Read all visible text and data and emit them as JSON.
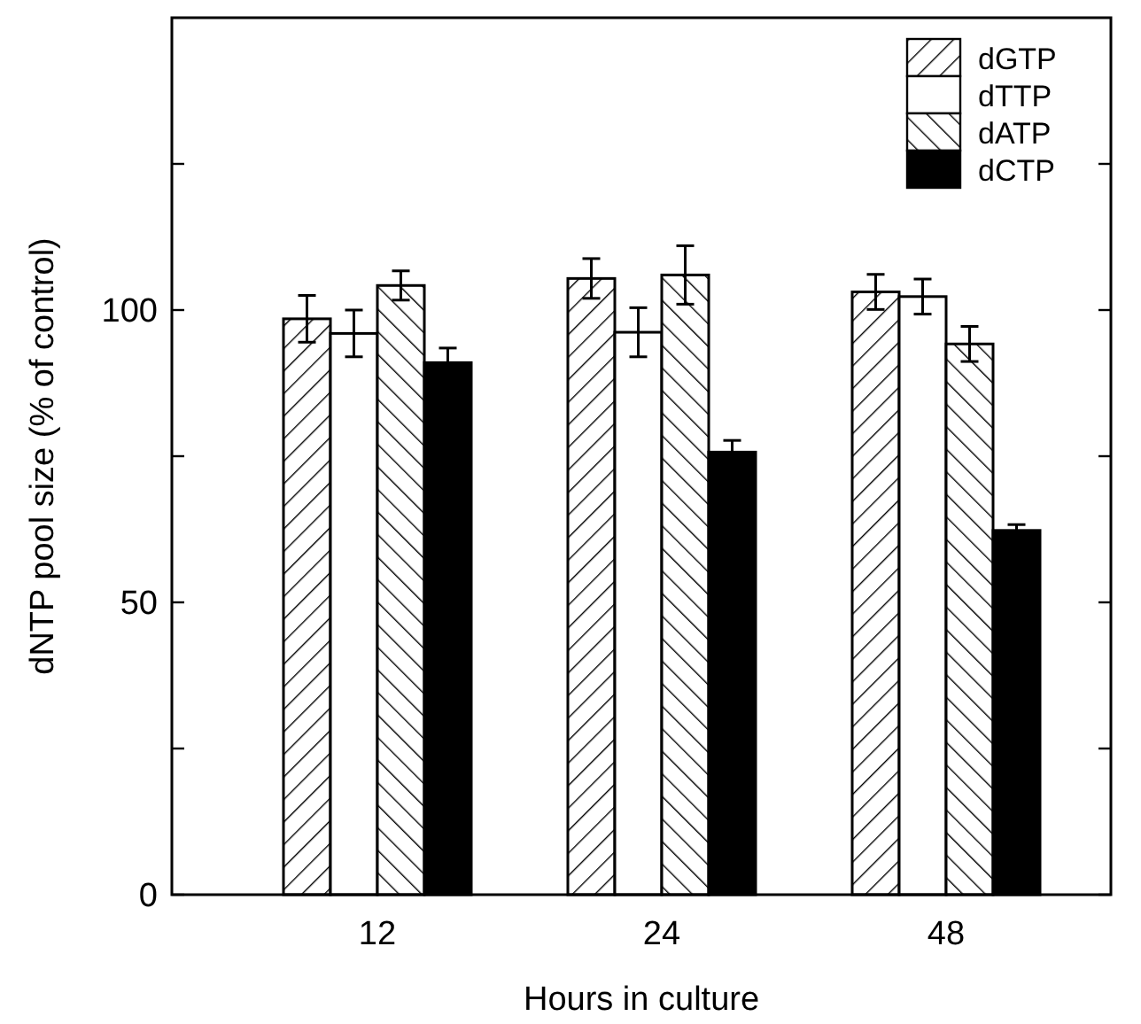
{
  "chart_data": {
    "type": "bar",
    "xlabel": "Hours in culture",
    "ylabel": "dNTP pool size (% of control)",
    "categories": [
      "12",
      "24",
      "48"
    ],
    "series": [
      {
        "name": "dGTP",
        "color": "#000000",
        "values": [
          98.5,
          105.4,
          103.1
        ],
        "errors": [
          4,
          3.4,
          3
        ]
      },
      {
        "name": "dTTP",
        "color": "#ffffff",
        "values": [
          96,
          96.2,
          102.3
        ],
        "errors": [
          4,
          4.2,
          3
        ]
      },
      {
        "name": "dATP",
        "color": "#000000",
        "values": [
          104.2,
          106,
          94.2
        ],
        "errors": [
          2.5,
          5,
          3
        ]
      },
      {
        "name": "dCTP",
        "color": "#000000",
        "values": [
          91,
          75.7,
          62.3
        ],
        "errors": [
          2.5,
          2,
          1
        ]
      }
    ],
    "ylim": [
      0,
      150
    ],
    "yticks": [
      0,
      {
        "value": 25,
        "label": null
      },
      50,
      {
        "value": 75,
        "label": null
      },
      100,
      {
        "value": 125,
        "label": null
      }
    ],
    "grid": false,
    "legend": "top right"
  }
}
